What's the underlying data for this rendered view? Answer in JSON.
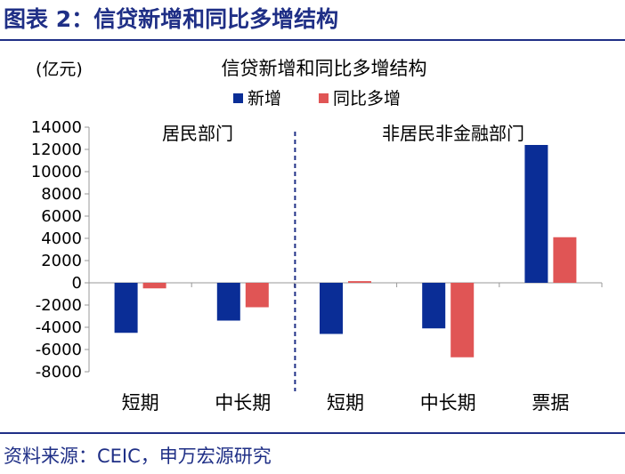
{
  "figure": {
    "label": "图表 2：信贷新增和同比多增结构",
    "source": "资料来源：CEIC，申万宏源研究"
  },
  "chart_data": {
    "type": "bar",
    "title": "信贷新增和同比多增结构",
    "unit_label": "(亿元)",
    "ylim": [
      -8000,
      14000
    ],
    "yticks": [
      14000,
      12000,
      10000,
      8000,
      6000,
      4000,
      2000,
      0,
      -2000,
      -4000,
      -6000,
      -8000
    ],
    "categories": [
      "短期",
      "中长期",
      "短期",
      "中长期",
      "票据"
    ],
    "groups": [
      {
        "label": "居民部门",
        "categories": [
          0,
          1
        ]
      },
      {
        "label": "非居民非金融部门",
        "categories": [
          2,
          3,
          4
        ]
      }
    ],
    "series": [
      {
        "name": "新增",
        "color": "#0a2d96",
        "values": [
          -4500,
          -3400,
          -4600,
          -4100,
          12400
        ]
      },
      {
        "name": "同比多增",
        "color": "#e05555",
        "values": [
          -500,
          -2200,
          150,
          -6700,
          4100
        ]
      }
    ],
    "legend_position": "top-center",
    "grid": false
  }
}
